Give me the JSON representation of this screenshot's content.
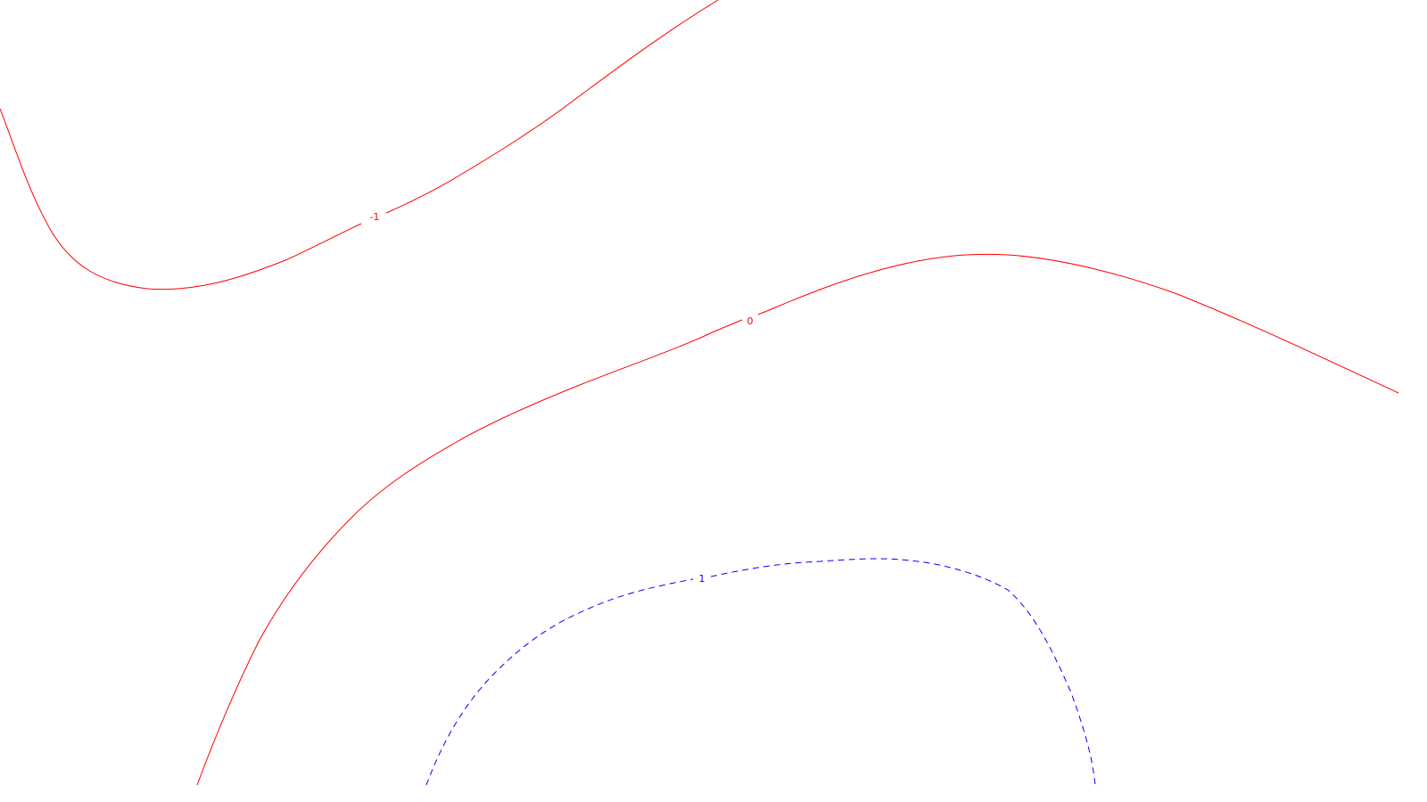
{
  "chart_data": {
    "type": "contour",
    "title": "",
    "xlabel": "",
    "ylabel": "",
    "grid": false,
    "legend": "none",
    "contours": [
      {
        "level": "-1",
        "color": "#ff0000",
        "style": "solid"
      },
      {
        "level": "0",
        "color": "#ff0000",
        "style": "solid"
      },
      {
        "level": "1",
        "color": "#0000ff",
        "style": "dashed"
      }
    ]
  }
}
